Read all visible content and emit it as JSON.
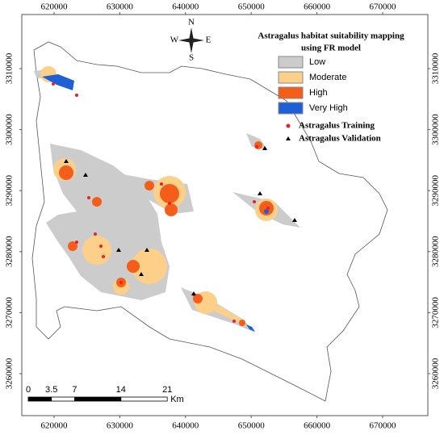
{
  "map": {
    "x_labels": [
      620000,
      630000,
      640000,
      650000,
      660000,
      670000
    ],
    "y_labels": [
      3260000,
      3270000,
      3280000,
      3290000,
      3300000,
      3310000
    ],
    "compass": {
      "north": "N",
      "south": "S",
      "east": "E",
      "west": "W"
    },
    "legend": {
      "title_lines": [
        "Astragalus habitat suitability mapping",
        "using FR model"
      ],
      "classes": [
        {
          "label": "Low",
          "color": "#cccccc"
        },
        {
          "label": "Moderate",
          "color": "#fdd08a"
        },
        {
          "label": "High",
          "color": "#f45d1a"
        },
        {
          "label": "Very High",
          "color": "#1f5fd6"
        }
      ],
      "points": [
        {
          "label": "Astragalus Training",
          "color": "#e8222a"
        },
        {
          "label": "Astragalus Validation",
          "color": "#000000"
        }
      ]
    },
    "scale_bar": {
      "labels": [
        0,
        3.5,
        7,
        14,
        21
      ],
      "unit": "Km"
    }
  }
}
